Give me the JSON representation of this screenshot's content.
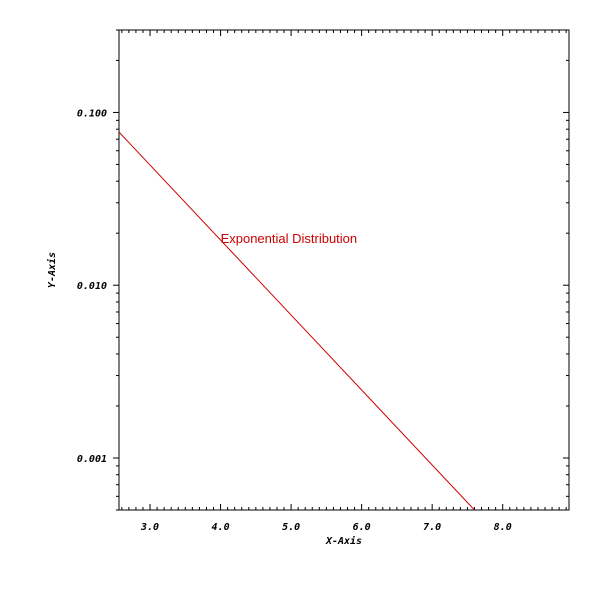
{
  "chart_data": {
    "type": "line",
    "xlabel": "X-Axis",
    "ylabel": "Y-Axis",
    "yscale": "log",
    "xlim": [
      2.56,
      8.94
    ],
    "ylim": [
      0.0005,
      0.3
    ],
    "x_ticks": [
      3.0,
      4.0,
      5.0,
      6.0,
      7.0,
      8.0
    ],
    "x_tick_labels": [
      "3.0",
      "4.0",
      "5.0",
      "6.0",
      "7.0",
      "8.0"
    ],
    "y_ticks": [
      0.001,
      0.01,
      0.1
    ],
    "y_tick_labels": [
      "0.001",
      "0.010",
      "0.100"
    ],
    "grid": false,
    "series": [
      {
        "name": "Exponential Distribution",
        "color": "#cc0000",
        "x": [
          2.56,
          7.6
        ],
        "y": [
          0.077,
          0.0005
        ]
      }
    ],
    "annotations": [
      {
        "text": "Exponential Distribution",
        "x": 4.0,
        "y": 0.0185
      }
    ]
  }
}
